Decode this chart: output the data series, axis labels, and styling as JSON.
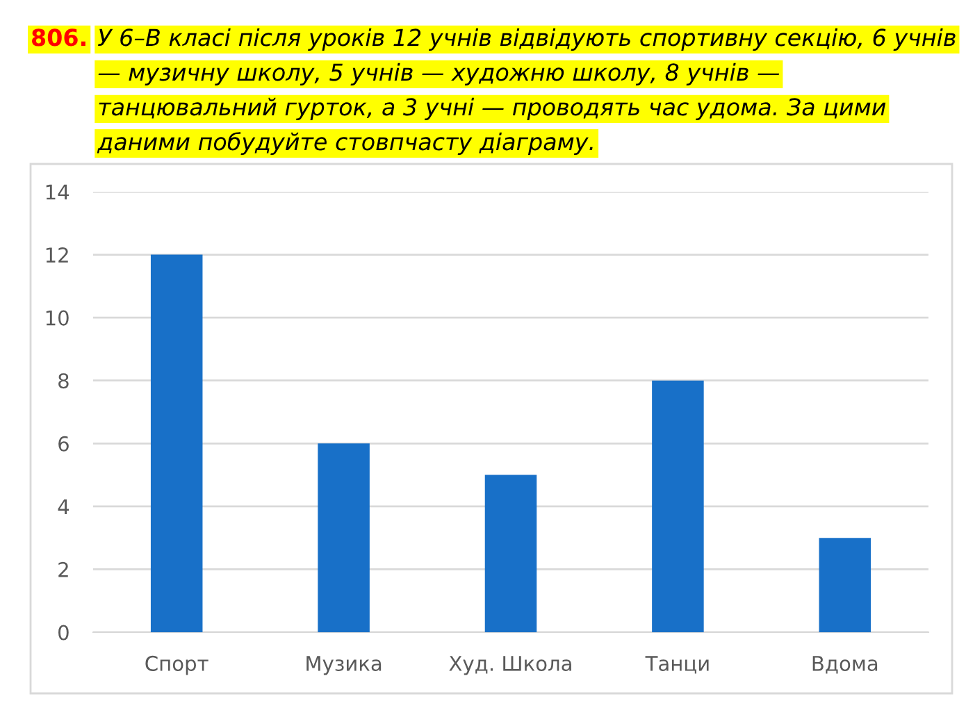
{
  "chart_data": {
    "type": "bar",
    "title": "806.",
    "subtitle": "У 6–В класі після уроків 12 учнів відвідують спортивну секцію, 6 учнів — музичну школу, 5 учнів — художню школу, 8 учнів — танцювальний гурток, а 3 учні — проводять час удома. За цими даними побудуйте стовпчасту діаграму.",
    "categories": [
      "Спорт",
      "Музика",
      "Худ. Школа",
      "Танци",
      "Вдома"
    ],
    "values": [
      12,
      6,
      5,
      8,
      3
    ],
    "color": "#1870c8",
    "ylim": [
      0,
      14
    ],
    "yticks": [
      0,
      2,
      4,
      6,
      8,
      10,
      12,
      14
    ],
    "grid": "y"
  }
}
